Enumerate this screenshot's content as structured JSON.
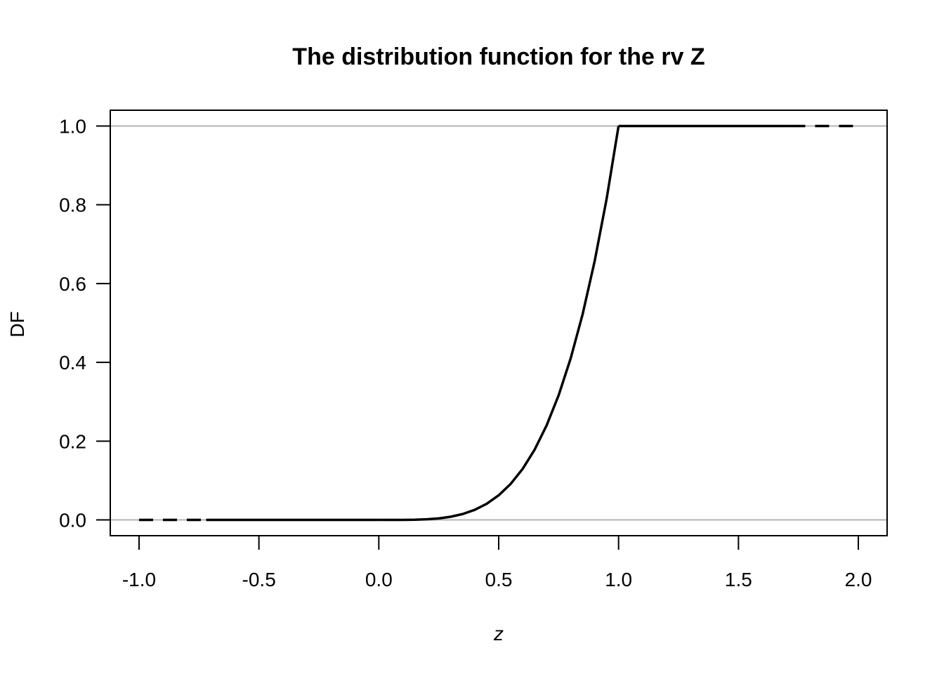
{
  "chart_data": {
    "type": "line",
    "title": "The distribution function for the rv Z",
    "xlabel": "z",
    "ylabel": "DF",
    "xlim": [
      -1.12,
      2.12
    ],
    "ylim": [
      -0.04,
      1.04
    ],
    "x_ticks": [
      -1.0,
      -0.5,
      0.0,
      0.5,
      1.0,
      1.5,
      2.0
    ],
    "x_tick_labels": [
      "-1.0",
      "-0.5",
      "0.0",
      "0.5",
      "1.0",
      "1.5",
      "2.0"
    ],
    "y_ticks": [
      0.0,
      0.2,
      0.4,
      0.6,
      0.8,
      1.0
    ],
    "y_tick_labels": [
      "0.0",
      "0.2",
      "0.4",
      "0.6",
      "0.8",
      "1.0"
    ],
    "reference_lines": [
      {
        "orientation": "horizontal",
        "y": 0,
        "color": "#b3b3b3"
      },
      {
        "orientation": "horizontal",
        "y": 1,
        "color": "#b3b3b3"
      }
    ],
    "series": [
      {
        "style": "solid",
        "color": "#000000",
        "x": [
          0,
          0.05,
          0.1,
          0.15,
          0.2,
          0.25,
          0.3,
          0.35,
          0.4,
          0.45,
          0.5,
          0.55,
          0.6,
          0.65,
          0.7,
          0.75,
          0.8,
          0.85,
          0.9,
          0.95,
          1.0
        ],
        "y": [
          0,
          6e-06,
          0.0001,
          0.0005,
          0.0016,
          0.0039,
          0.0081,
          0.015,
          0.0256,
          0.041,
          0.0625,
          0.0915,
          0.1296,
          0.1785,
          0.2401,
          0.3164,
          0.4096,
          0.522,
          0.6561,
          0.8145,
          1.0
        ]
      },
      {
        "style": "solid",
        "color": "#000000",
        "x": [
          -0.72,
          0
        ],
        "y": [
          0,
          0
        ]
      },
      {
        "style": "solid",
        "color": "#000000",
        "x": [
          1.0,
          1.72
        ],
        "y": [
          1,
          1
        ]
      },
      {
        "style": "dashed",
        "color": "#000000",
        "x": [
          -1.0,
          -0.72
        ],
        "y": [
          0,
          0
        ]
      },
      {
        "style": "dashed",
        "color": "#000000",
        "x": [
          1.72,
          2.0
        ],
        "y": [
          1,
          1
        ]
      }
    ],
    "grid": false,
    "legend": "none"
  }
}
